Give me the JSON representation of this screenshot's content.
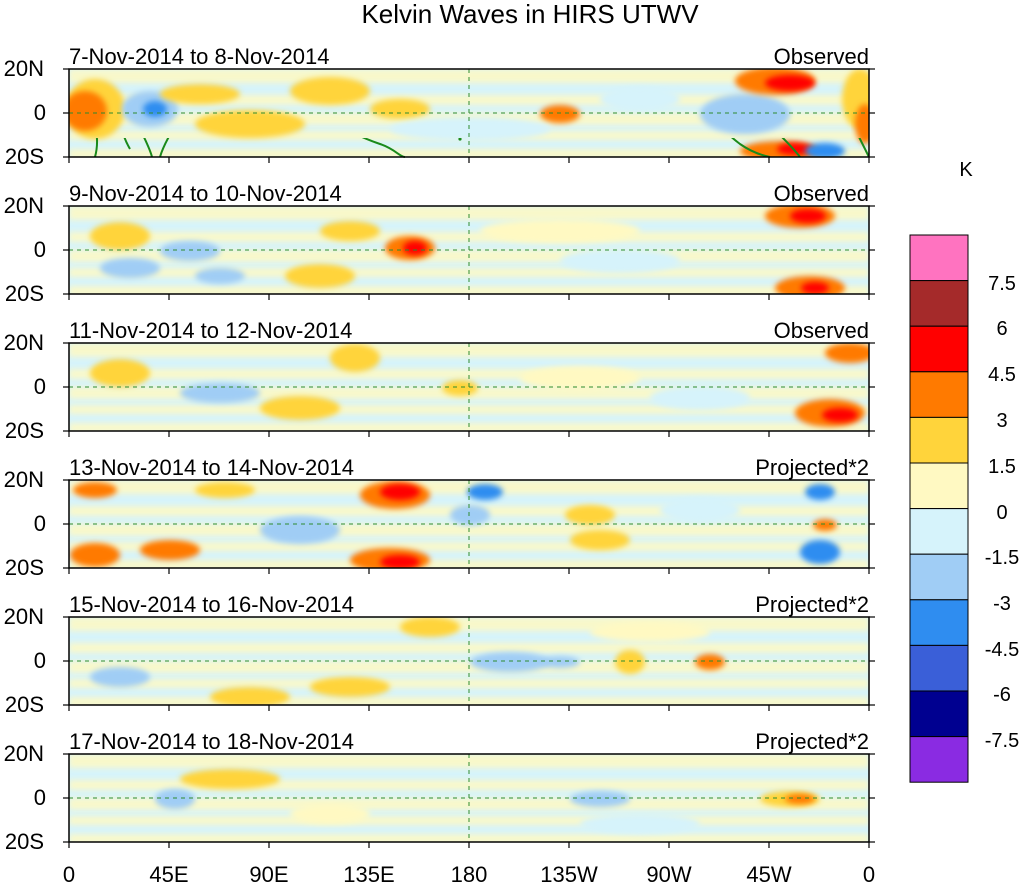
{
  "title": "Kelvin Waves in HIRS UTWV",
  "lat_labels": [
    "20N",
    "0",
    "20S"
  ],
  "lon_labels": [
    "0",
    "45E",
    "90E",
    "135E",
    "180",
    "135W",
    "90W",
    "45W",
    "0"
  ],
  "panels": [
    {
      "date_range": "7-Nov-2014 to 8-Nov-2014",
      "kind": "Observed"
    },
    {
      "date_range": "9-Nov-2014 to 10-Nov-2014",
      "kind": "Observed"
    },
    {
      "date_range": "11-Nov-2014 to 12-Nov-2014",
      "kind": "Observed"
    },
    {
      "date_range": "13-Nov-2014 to 14-Nov-2014",
      "kind": "Projected*2"
    },
    {
      "date_range": "15-Nov-2014 to 16-Nov-2014",
      "kind": "Projected*2"
    },
    {
      "date_range": "17-Nov-2014 to 18-Nov-2014",
      "kind": "Projected*2"
    }
  ],
  "colorbar": {
    "unit": "K",
    "tick_labels": [
      "7.5",
      "6",
      "4.5",
      "3",
      "1.5",
      "0",
      "-1.5",
      "-3",
      "-4.5",
      "-6",
      "-7.5"
    ],
    "colors_top_to_bottom": [
      "#ff73c0",
      "#a52a2a",
      "#ff0000",
      "#ff7a00",
      "#ffd43b",
      "#fff9c2",
      "#d6f3fb",
      "#a0cdf5",
      "#2f8df0",
      "#3a5fd8",
      "#000090",
      "#8a2be2"
    ]
  },
  "map_colors": {
    "coast": "#1a8a1a",
    "reference_line": "#2e8b2e",
    "frame": "#000000"
  }
}
